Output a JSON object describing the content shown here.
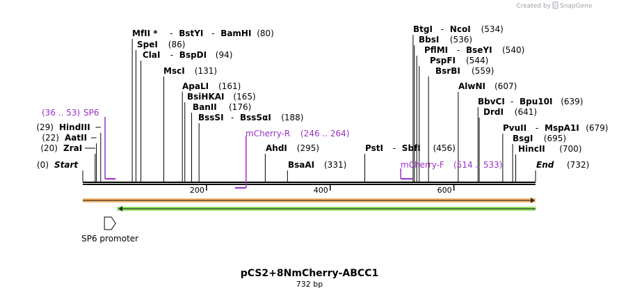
{
  "watermark": "Created by",
  "brand": "SnapGene",
  "brand_icon": "snapgene-logo-icon",
  "title": "pCS2+8NmCherry-ABCC1",
  "length": "732 bp",
  "total_bp": 732,
  "colors": {
    "primer": "#9b30c8",
    "orange_feature": "#f5b971",
    "green_feature": "#9be36b",
    "backbone": "#000000"
  },
  "scale_ticks": [
    {
      "bp": 200,
      "label": "200"
    },
    {
      "bp": 400,
      "label": "400"
    },
    {
      "bp": 600,
      "label": "600"
    }
  ],
  "ends": [
    {
      "pos_label": "(0)",
      "name": "Start",
      "bp": 0
    },
    {
      "pos_label": "(732)",
      "name": "End",
      "bp": 732
    }
  ],
  "sites": [
    {
      "bp": 20,
      "parts": [
        "ZraI"
      ],
      "pos_label": "(20)",
      "side": "left"
    },
    {
      "bp": 22,
      "parts": [
        "AatII"
      ],
      "pos_label": "(22)",
      "side": "left"
    },
    {
      "bp": 29,
      "parts": [
        "HindIII"
      ],
      "pos_label": "(29)",
      "side": "left"
    },
    {
      "bp": 80,
      "parts": [
        "MfII *",
        "BstYI",
        "BamHI"
      ],
      "pos_label": "(80)",
      "side": "right"
    },
    {
      "bp": 86,
      "parts": [
        "SpeI"
      ],
      "pos_label": "(86)",
      "side": "right"
    },
    {
      "bp": 94,
      "parts": [
        "ClaI",
        "BspDI"
      ],
      "pos_label": "(94)",
      "side": "right"
    },
    {
      "bp": 131,
      "parts": [
        "MscI"
      ],
      "pos_label": "(131)",
      "side": "right"
    },
    {
      "bp": 161,
      "parts": [
        "ApaLI"
      ],
      "pos_label": "(161)",
      "side": "right"
    },
    {
      "bp": 165,
      "parts": [
        "BsiHKAI"
      ],
      "pos_label": "(165)",
      "side": "right"
    },
    {
      "bp": 176,
      "parts": [
        "BanII"
      ],
      "pos_label": "(176)",
      "side": "right"
    },
    {
      "bp": 188,
      "parts": [
        "BssSI",
        "BssSαI"
      ],
      "pos_label": "(188)",
      "side": "right"
    },
    {
      "bp": 295,
      "parts": [
        "AhdI"
      ],
      "pos_label": "(295)",
      "side": "right"
    },
    {
      "bp": 331,
      "parts": [
        "BsaAI"
      ],
      "pos_label": "(331)",
      "side": "right"
    },
    {
      "bp": 456,
      "parts": [
        "PstI",
        "SbfI"
      ],
      "pos_label": "(456)",
      "side": "right"
    },
    {
      "bp": 534,
      "parts": [
        "BtgI",
        "NcoI"
      ],
      "pos_label": "(534)",
      "side": "right"
    },
    {
      "bp": 536,
      "parts": [
        "BbsI"
      ],
      "pos_label": "(536)",
      "side": "right"
    },
    {
      "bp": 540,
      "parts": [
        "PflMI",
        "BseYI"
      ],
      "pos_label": "(540)",
      "side": "right"
    },
    {
      "bp": 544,
      "parts": [
        "PspFI"
      ],
      "pos_label": "(544)",
      "side": "right"
    },
    {
      "bp": 559,
      "parts": [
        "BsrBI"
      ],
      "pos_label": "(559)",
      "side": "right"
    },
    {
      "bp": 607,
      "parts": [
        "AlwNI"
      ],
      "pos_label": "(607)",
      "side": "right"
    },
    {
      "bp": 639,
      "parts": [
        "BbvCI",
        "Bpu10I"
      ],
      "pos_label": "(639)",
      "side": "right"
    },
    {
      "bp": 641,
      "parts": [
        "DrdI"
      ],
      "pos_label": "(641)",
      "side": "right"
    },
    {
      "bp": 679,
      "parts": [
        "PvuII",
        "MspA1I"
      ],
      "pos_label": "(679)",
      "side": "right"
    },
    {
      "bp": 695,
      "parts": [
        "BsgI"
      ],
      "pos_label": "(695)",
      "side": "right"
    },
    {
      "bp": 700,
      "parts": [
        "HincII"
      ],
      "pos_label": "(700)",
      "side": "right"
    }
  ],
  "primers": [
    {
      "name": "SP6",
      "range": "(36 .. 53)",
      "start": 36,
      "end": 53,
      "direction": "forward"
    },
    {
      "name": "mCherry-R",
      "range": "(246 .. 264)",
      "start": 246,
      "end": 264,
      "direction": "reverse"
    },
    {
      "name": "mCherry-F",
      "range": "(514 .. 533)",
      "start": 514,
      "end": 533,
      "direction": "forward"
    }
  ],
  "features": [
    {
      "name": "orange-feature",
      "start": 1,
      "end": 732,
      "direction": "forward"
    },
    {
      "name": "green-feature",
      "start": 62,
      "end": 732,
      "direction": "reverse"
    },
    {
      "name": "SP6 promoter",
      "start": 35,
      "end": 53,
      "direction": "forward"
    }
  ]
}
